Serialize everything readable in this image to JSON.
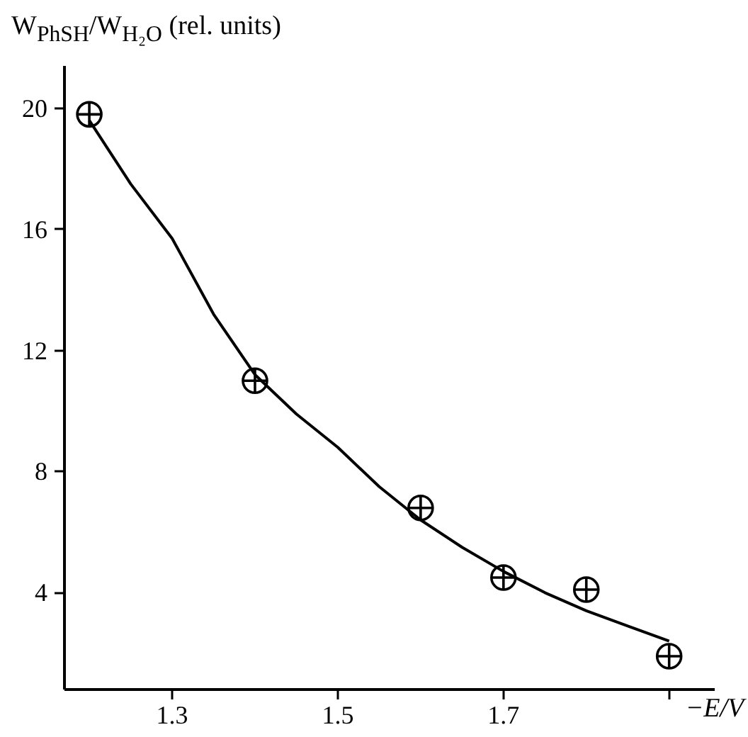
{
  "chart_data": {
    "type": "scatter",
    "ylabel": "W$_{PhSH}$/W$_{H₂O}$ (rel. units)",
    "xlabel": "−E/V",
    "xlim": [
      1.17,
      1.955
    ],
    "ylim": [
      0.8,
      21.4
    ],
    "xticks": [
      1.3,
      1.5,
      1.7,
      {
        "value": 1.9,
        "label": null
      }
    ],
    "yticks": [
      4,
      8,
      12,
      16,
      20
    ],
    "grid": false,
    "series": [
      {
        "marker": "circle",
        "color": "#000000",
        "x": [
          1.2,
          1.4,
          1.6,
          1.7,
          1.8,
          1.9
        ],
        "values": [
          19.8,
          11.0,
          6.8,
          4.5,
          4.1,
          1.9
        ]
      },
      {
        "type": "line",
        "marker": "none",
        "color": "#000000",
        "line_style": "solid",
        "x": [
          1.2,
          1.25,
          1.3,
          1.35,
          1.4,
          1.45,
          1.5,
          1.55,
          1.6,
          1.65,
          1.7,
          1.75,
          1.8,
          1.85,
          1.9
        ],
        "values": [
          19.6,
          17.5,
          15.7,
          13.2,
          11.2,
          9.9,
          8.8,
          7.5,
          6.4,
          5.5,
          4.7,
          4.0,
          3.4,
          2.9,
          2.4
        ]
      }
    ]
  }
}
